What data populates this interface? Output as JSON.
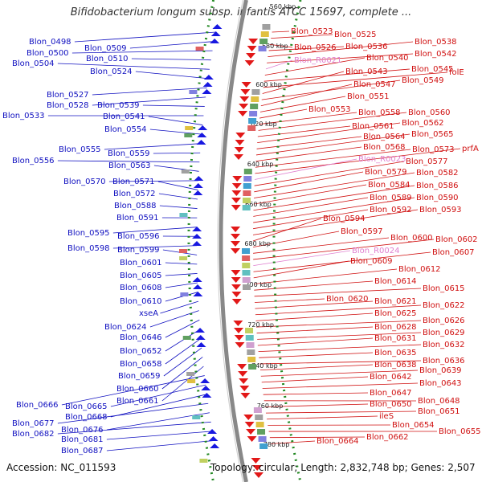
{
  "header": {
    "title": "Bifidobacterium longum subsp. infantis ATCC 15697, complete ..."
  },
  "footer": {
    "accession": "Accession: NC_011593",
    "summary": "Topology: circular; Length: 2,832,748 bp; Genes: 2,507"
  },
  "colors": {
    "left_labels": "#1010c0",
    "right_labels": "#d01010",
    "rna_labels": "#e080d0",
    "backbone": "#888888",
    "ticks": "#228822"
  },
  "kbp_ticks": [
    "560 kbp",
    "580 kbp",
    "600 kbp",
    "620 kbp",
    "640 kbp",
    "660 kbp",
    "680 kbp",
    "700 kbp",
    "720 kbp",
    "740 kbp",
    "760 kbp",
    "780 kbp"
  ],
  "left_labels": [
    "Blon_0498",
    "Blon_0509",
    "Blon_0500",
    "Blon_0510",
    "Blon_0504",
    "Blon_0524",
    "Blon_0527",
    "Blon_0528",
    "Blon_0539",
    "Blon_0533",
    "Blon_0541",
    "Blon_0554",
    "Blon_0555",
    "Blon_0559",
    "Blon_0556",
    "Blon_0563",
    "Blon_0570",
    "Blon_0571",
    "Blon_0572",
    "Blon_0588",
    "Blon_0591",
    "Blon_0595",
    "Blon_0596",
    "Blon_0598",
    "Blon_0599",
    "Blon_0601",
    "Blon_0605",
    "Blon_0608",
    "Blon_0610",
    "xseA",
    "Blon_0624",
    "Blon_0646",
    "Blon_0652",
    "Blon_0658",
    "Blon_0659",
    "Blon_0660",
    "Blon_0661",
    "Blon_0666",
    "Blon_0665",
    "Blon_0668",
    "Blon_0677",
    "Blon_0676",
    "Blon_0682",
    "Blon_0681",
    "Blon_0687"
  ],
  "right_labels": [
    "Blon_0523",
    "Blon_0525",
    "Blon_0526",
    "Blon_0536",
    "Blon_0538",
    "Blon_0542",
    "Blon_R0021",
    "Blon_0540",
    "Blon_0545",
    "folE",
    "Blon_0543",
    "Blon_0549",
    "Blon_0547",
    "Blon_0551",
    "Blon_0553",
    "Blon_0558",
    "Blon_0560",
    "Blon_0561",
    "Blon_0562",
    "Blon_0564",
    "Blon_0565",
    "Blon_0568",
    "Blon_0573",
    "prfA",
    "Blon_R0023",
    "Blon_0577",
    "Blon_0579",
    "Blon_0582",
    "Blon_0584",
    "Blon_0586",
    "Blon_0589",
    "Blon_0590",
    "Blon_0592",
    "Blon_0593",
    "Blon_0594",
    "Blon_0597",
    "Blon_0600",
    "Blon_0602",
    "Blon_R0024",
    "Blon_0607",
    "Blon_0609",
    "Blon_0612",
    "Blon_0614",
    "Blon_0615",
    "Blon_0620",
    "Blon_0621",
    "Blon_0622",
    "Blon_0625",
    "Blon_0626",
    "Blon_0628",
    "Blon_0629",
    "Blon_0631",
    "Blon_0632",
    "Blon_0635",
    "Blon_0636",
    "Blon_0638",
    "Blon_0639",
    "Blon_0642",
    "Blon_0643",
    "Blon_0647",
    "Blon_0648",
    "Blon_0650",
    "Blon_0651",
    "ileS",
    "Blon_0654",
    "Blon_0655",
    "Blon_0662",
    "Blon_0664"
  ]
}
